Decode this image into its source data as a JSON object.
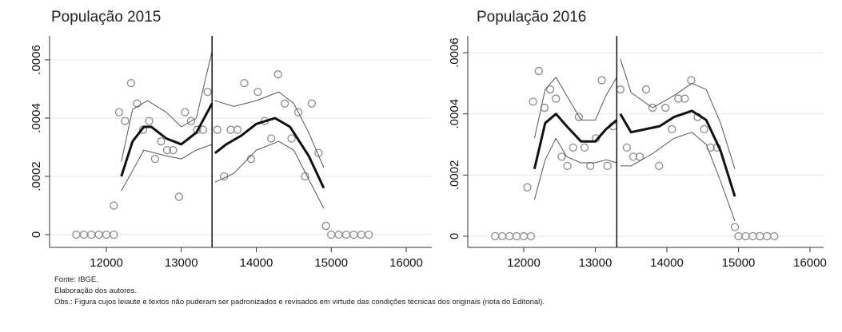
{
  "chart_data": [
    {
      "type": "scatter",
      "title": "População 2015",
      "xlim": [
        11243,
        16341
      ],
      "xticks": [
        12000,
        13000,
        14000,
        15000,
        16000
      ],
      "ylim": [
        -4.38e-05,
        0.000682
      ],
      "yticks": [
        0,
        {
          "value": 0.0002,
          "label": ".0002"
        },
        {
          "value": 0.0004,
          "label": ".0004"
        },
        {
          "value": 0.0006,
          "label": ".0006"
        }
      ],
      "grid": true,
      "cutoff": 13410,
      "series": [
        {
          "mode": "markers",
          "color": "#8c8c8c",
          "x": [
            11600,
            11700,
            11800,
            11900,
            12000,
            12100,
            12100,
            12170,
            12250,
            12330,
            12410,
            12490,
            12570,
            12650,
            12730,
            12810,
            12890,
            12970,
            13050,
            13130,
            13210,
            13290,
            13350,
            13480,
            13570,
            13660,
            13750,
            13840,
            13930,
            14020,
            14110,
            14200,
            14290,
            14380,
            14470,
            14560,
            14650,
            14740,
            14830,
            14930,
            15000,
            15100,
            15200,
            15300,
            15400,
            15500
          ],
          "values": [
            0,
            0,
            0,
            0,
            0,
            0,
            0.0001,
            0.00042,
            0.00039,
            0.00052,
            0.00045,
            0.00036,
            0.00039,
            0.00026,
            0.00032,
            0.00029,
            0.00029,
            0.00013,
            0.00042,
            0.00039,
            0.00036,
            0.00036,
            0.00049,
            0.00036,
            0.0002,
            0.00036,
            0.00036,
            0.00052,
            0.00026,
            0.00049,
            0.00039,
            0.00033,
            0.00055,
            0.00045,
            0.00033,
            0.00042,
            0.0002,
            0.00045,
            0.00028,
            3e-05,
            0,
            0,
            0,
            0,
            0,
            0
          ]
        },
        {
          "mode": "lines",
          "color": "#555555",
          "width": 1,
          "x": [
            12200,
            12350,
            12550,
            12800,
            13000,
            13200,
            13410,
            null,
            13450,
            13700,
            14000,
            14300,
            14500,
            14700,
            14900
          ],
          "values": [
            0.00025,
            0.00043,
            0.00046,
            0.00042,
            0.00037,
            0.0004,
            0.00063,
            null,
            0.00046,
            0.00044,
            0.00046,
            0.00049,
            0.00045,
            0.00035,
            0.00023
          ]
        },
        {
          "mode": "lines",
          "color": "#555555",
          "width": 1,
          "x": [
            12200,
            12350,
            12500,
            12800,
            13000,
            13200,
            13410,
            null,
            13450,
            13700,
            14000,
            14300,
            14500,
            14700,
            14900
          ],
          "values": [
            0.00015,
            0.00022,
            0.00029,
            0.00027,
            0.00026,
            0.00029,
            0.00031,
            null,
            0.00018,
            0.00021,
            0.00029,
            0.00032,
            0.00029,
            0.00019,
            9e-05
          ]
        },
        {
          "mode": "lines",
          "color": "#111111",
          "width": 3,
          "x": [
            12200,
            12350,
            12500,
            12600,
            12800,
            13000,
            13200,
            13410,
            null,
            13450,
            13600,
            13800,
            14000,
            14250,
            14450,
            14700,
            14900
          ],
          "values": [
            0.0002,
            0.00032,
            0.00037,
            0.00037,
            0.00033,
            0.00031,
            0.00035,
            0.00045,
            null,
            0.00028,
            0.00031,
            0.00034,
            0.00038,
            0.0004,
            0.00037,
            0.00027,
            0.00016
          ]
        }
      ]
    },
    {
      "type": "scatter",
      "title": "População 2016",
      "xlim": [
        11218,
        16190
      ],
      "xticks": [
        12000,
        13000,
        14000,
        15000,
        16000
      ],
      "ylim": [
        -3.65e-05,
        0.000655
      ],
      "yticks": [
        0,
        {
          "value": 0.0002,
          "label": ".0002"
        },
        {
          "value": 0.0004,
          "label": ".0004"
        },
        {
          "value": 0.0006,
          "label": ".0006"
        }
      ],
      "grid": true,
      "cutoff": 13300,
      "series": [
        {
          "mode": "markers",
          "color": "#8c8c8c",
          "x": [
            11600,
            11700,
            11800,
            11900,
            12000,
            12100,
            12050,
            12130,
            12210,
            12290,
            12370,
            12450,
            12530,
            12610,
            12690,
            12770,
            12850,
            12930,
            13010,
            13090,
            13170,
            13250,
            13350,
            13440,
            13530,
            13620,
            13710,
            13800,
            13890,
            13980,
            14070,
            14160,
            14250,
            14340,
            14430,
            14520,
            14610,
            14700,
            14950,
            15000,
            15100,
            15200,
            15300,
            15400,
            15500
          ],
          "values": [
            0,
            0,
            0,
            0,
            0,
            0,
            0.00016,
            0.00044,
            0.00054,
            0.00042,
            0.00048,
            0.00045,
            0.00026,
            0.00023,
            0.00029,
            0.00039,
            0.00029,
            0.00023,
            0.00032,
            0.00051,
            0.00023,
            0.00036,
            0.00048,
            0.00029,
            0.00026,
            0.00026,
            0.00048,
            0.00042,
            0.00023,
            0.00042,
            0.00035,
            0.00045,
            0.00045,
            0.00051,
            0.00039,
            0.00035,
            0.00029,
            0.00029,
            3e-05,
            0,
            0,
            0,
            0,
            0,
            0
          ]
        },
        {
          "mode": "lines",
          "color": "#555555",
          "width": 1,
          "x": [
            12150,
            12300,
            12450,
            12600,
            12800,
            13000,
            13150,
            13300,
            null,
            13350,
            13500,
            13800,
            14100,
            14350,
            14550,
            14750,
            14950
          ],
          "values": [
            0.00032,
            0.00048,
            0.00052,
            0.00046,
            0.00038,
            0.00038,
            0.00046,
            0.00052,
            null,
            0.00058,
            0.00047,
            0.00042,
            0.00046,
            0.0005,
            0.00048,
            0.00037,
            0.00022
          ]
        },
        {
          "mode": "lines",
          "color": "#555555",
          "width": 1,
          "x": [
            12150,
            12300,
            12450,
            12600,
            12800,
            13000,
            13150,
            13300,
            null,
            13350,
            13500,
            13800,
            14100,
            14350,
            14550,
            14750,
            14950
          ],
          "values": [
            0.00012,
            0.00025,
            0.00032,
            0.00026,
            0.00024,
            0.00024,
            0.00025,
            0.00024,
            null,
            0.00023,
            0.00023,
            0.00027,
            0.00032,
            0.00034,
            0.0003,
            0.00018,
            5e-05
          ]
        },
        {
          "mode": "lines",
          "color": "#111111",
          "width": 3,
          "x": [
            12150,
            12300,
            12450,
            12600,
            12800,
            13000,
            13150,
            13300,
            null,
            13350,
            13500,
            13700,
            13900,
            14100,
            14350,
            14550,
            14750,
            14950
          ],
          "values": [
            0.00022,
            0.00037,
            0.0004,
            0.00036,
            0.00031,
            0.00031,
            0.00035,
            0.00038,
            null,
            0.0004,
            0.00034,
            0.00035,
            0.00036,
            0.00039,
            0.00041,
            0.00038,
            0.00028,
            0.00013
          ]
        }
      ]
    }
  ],
  "notes": [
    "Fonte: IBGE.",
    "Elaboração dos autores.",
    "Obs.: Figura cujos leiaute e textos não puderam ser padronizados e revisados em virtude das condições técnicas dos originais (nota do Editorial)."
  ]
}
